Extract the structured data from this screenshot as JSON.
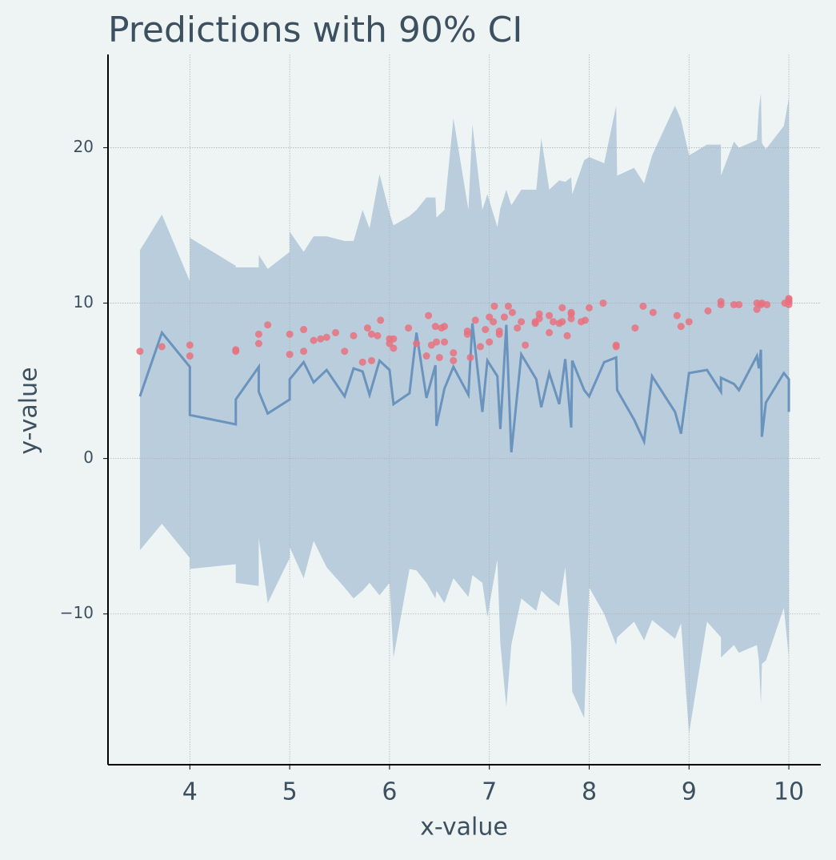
{
  "chart_data": {
    "type": "line",
    "title": "Predictions with 90% CI",
    "xlabel": "x-value",
    "ylabel": "y-value",
    "x": [
      3.5,
      3.72,
      4.0,
      4.0,
      4.46,
      4.46,
      4.69,
      4.69,
      4.78,
      5.0,
      5.0,
      5.14,
      5.24,
      5.37,
      5.55,
      5.64,
      5.73,
      5.8,
      5.9,
      6.0,
      6.04,
      6.2,
      6.27,
      6.37,
      6.46,
      6.47,
      6.55,
      6.64,
      6.79,
      6.83,
      6.93,
      6.98,
      7.08,
      7.11,
      7.17,
      7.22,
      7.32,
      7.47,
      7.52,
      7.6,
      7.7,
      7.76,
      7.82,
      7.83,
      7.95,
      8.0,
      8.15,
      8.27,
      8.28,
      8.45,
      8.55,
      8.63,
      8.86,
      8.92,
      9.0,
      9.18,
      9.32,
      9.32,
      9.45,
      9.5,
      9.68,
      9.7,
      9.72,
      9.73,
      9.77,
      9.95,
      10.0,
      10.0
    ],
    "values": [
      4.0,
      8.1,
      5.9,
      2.8,
      2.2,
      3.8,
      5.9,
      4.3,
      2.9,
      3.8,
      5.1,
      6.2,
      4.9,
      5.7,
      4.0,
      5.8,
      5.6,
      4.1,
      6.3,
      5.7,
      3.5,
      4.2,
      8.1,
      3.9,
      6.0,
      2.1,
      4.5,
      5.9,
      4.1,
      8.7,
      3.0,
      6.3,
      5.3,
      1.9,
      8.6,
      0.4,
      6.7,
      5.1,
      3.3,
      5.5,
      3.5,
      6.4,
      2.0,
      6.3,
      4.4,
      4.0,
      6.2,
      6.5,
      4.4,
      2.5,
      1.1,
      5.3,
      3.0,
      1.6,
      5.5,
      5.7,
      4.3,
      5.2,
      4.8,
      4.4,
      6.6,
      5.8,
      7.0,
      1.4,
      3.6,
      5.5,
      5.1,
      3.0
    ],
    "ci_lower": [
      -5.9,
      -4.2,
      -6.4,
      -7.1,
      -6.8,
      -8.0,
      -8.2,
      -5.1,
      -9.3,
      -6.4,
      -5.7,
      -7.7,
      -5.3,
      -7.0,
      -8.3,
      -9.0,
      -8.5,
      -8.0,
      -8.8,
      -8.0,
      -12.8,
      -7.1,
      -7.2,
      -8.0,
      -9.0,
      -8.5,
      -9.3,
      -7.7,
      -8.9,
      -7.5,
      -8.0,
      -10.2,
      -6.5,
      -11.9,
      -16.0,
      -12.0,
      -9.0,
      -9.8,
      -8.5,
      -9.0,
      -9.5,
      -7.0,
      -12.0,
      -15.0,
      -16.7,
      -8.3,
      -10.0,
      -12.0,
      -11.5,
      -10.5,
      -11.7,
      -10.4,
      -11.6,
      -10.6,
      -17.7,
      -10.5,
      -11.5,
      -12.8,
      -12.0,
      -12.5,
      -12.0,
      -13.0,
      -15.8,
      -13.2,
      -13.0,
      -9.6,
      -12.8,
      -12.8
    ],
    "ci_upper": [
      13.4,
      15.7,
      11.4,
      14.2,
      12.4,
      12.3,
      12.3,
      13.1,
      12.2,
      13.3,
      14.6,
      13.3,
      14.3,
      14.3,
      14.0,
      14.0,
      16.0,
      14.8,
      18.3,
      15.8,
      15.0,
      15.6,
      16.0,
      16.8,
      16.8,
      15.5,
      16.0,
      21.9,
      16.0,
      21.5,
      16.0,
      17.0,
      14.9,
      16.1,
      17.3,
      16.3,
      17.3,
      17.3,
      20.6,
      17.3,
      17.9,
      17.8,
      18.1,
      17.0,
      19.2,
      19.4,
      19.0,
      22.7,
      18.2,
      18.7,
      17.7,
      19.5,
      22.7,
      21.8,
      19.5,
      20.2,
      20.2,
      18.2,
      20.4,
      20.0,
      20.5,
      22.5,
      23.5,
      20.3,
      19.9,
      21.4,
      23.2,
      23.2
    ],
    "color": "#6a93bd",
    "band_color": "#b9cddc",
    "scatter": {
      "color": "#e8717f",
      "x": [
        3.5,
        3.72,
        4.0,
        4.0,
        4.46,
        4.46,
        4.69,
        4.69,
        4.78,
        5.0,
        5.0,
        5.14,
        5.14,
        5.24,
        5.31,
        5.37,
        5.46,
        5.55,
        5.64,
        5.73,
        5.78,
        5.82,
        5.82,
        5.88,
        5.91,
        6.0,
        6.0,
        6.04,
        6.04,
        6.19,
        6.27,
        6.37,
        6.39,
        6.42,
        6.46,
        6.47,
        6.5,
        6.52,
        6.55,
        6.55,
        6.64,
        6.64,
        6.78,
        6.78,
        6.81,
        6.86,
        6.91,
        6.96,
        7.0,
        7.0,
        7.04,
        7.05,
        7.1,
        7.1,
        7.15,
        7.19,
        7.23,
        7.28,
        7.32,
        7.36,
        7.46,
        7.46,
        7.5,
        7.5,
        7.6,
        7.6,
        7.64,
        7.7,
        7.73,
        7.73,
        7.78,
        7.82,
        7.82,
        7.82,
        7.92,
        7.96,
        8.0,
        8.14,
        8.27,
        8.27,
        8.46,
        8.54,
        8.64,
        8.88,
        8.92,
        9.0,
        9.19,
        9.32,
        9.32,
        9.45,
        9.5,
        9.68,
        9.68,
        9.72,
        9.73,
        9.78,
        9.96,
        10.0,
        10.0,
        10.0,
        10.0
      ],
      "y": [
        6.9,
        7.2,
        7.3,
        6.6,
        7.0,
        6.9,
        8.0,
        7.4,
        8.6,
        8.0,
        6.7,
        8.3,
        6.9,
        7.6,
        7.7,
        7.8,
        8.1,
        6.9,
        7.9,
        6.2,
        8.4,
        8.0,
        6.3,
        7.9,
        8.9,
        7.7,
        7.4,
        7.7,
        7.1,
        8.4,
        7.4,
        6.6,
        9.2,
        7.3,
        8.5,
        7.5,
        6.5,
        8.4,
        8.5,
        7.5,
        6.3,
        6.8,
        8.2,
        8.0,
        6.5,
        8.9,
        7.2,
        8.3,
        9.1,
        7.5,
        8.8,
        9.8,
        8.2,
        8.0,
        9.1,
        9.8,
        9.4,
        8.4,
        8.8,
        7.3,
        8.8,
        8.7,
        9.3,
        9.0,
        9.2,
        8.1,
        8.8,
        8.7,
        9.7,
        8.8,
        7.9,
        9.4,
        9.3,
        9.0,
        8.8,
        8.9,
        9.7,
        10.0,
        7.3,
        7.2,
        8.4,
        9.8,
        9.4,
        9.2,
        8.5,
        8.8,
        9.5,
        10.1,
        9.9,
        9.9,
        9.9,
        10.0,
        9.6,
        9.9,
        10.0,
        9.9,
        10.0,
        10.3,
        10.1,
        9.9,
        10.2
      ]
    },
    "xlim": [
      3.18,
      10.32
    ],
    "ylim": [
      -19.7,
      26
    ],
    "xticks": [
      4,
      5,
      6,
      7,
      8,
      9,
      10
    ],
    "yticks": [
      {
        "value": -10,
        "label": "−10"
      },
      0,
      10,
      20
    ],
    "grid": true
  }
}
